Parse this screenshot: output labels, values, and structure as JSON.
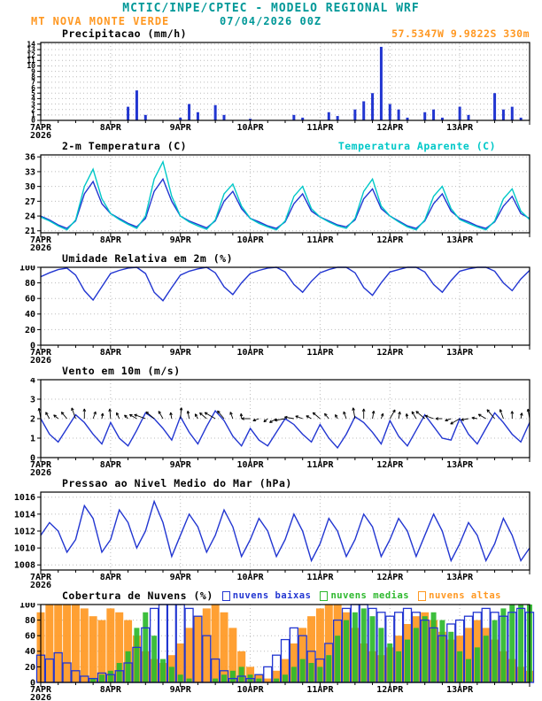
{
  "header": {
    "title": "MCTIC/INPE/CPTEC - MODELO REGIONAL WRF",
    "station": "MT NOVA MONTE VERDE",
    "run": "07/04/2026 00Z",
    "location": "57.5347W 9.9822S 330m"
  },
  "colors": {
    "teal": "#009898",
    "orange": "#ff9822",
    "blue": "#2236d1",
    "cyan": "#00c8c8",
    "green": "#2db82d",
    "grid": "#bbbbbb"
  },
  "x_axis": {
    "day_labels": [
      "7APR",
      "8APR",
      "9APR",
      "10APR",
      "11APR",
      "12APR",
      "13APR"
    ],
    "year_label": "2026",
    "hours_total": 168,
    "step_hours": 3
  },
  "chart_data": [
    {
      "id": "precip",
      "type": "bars",
      "title": "Precipitacao (mm/h)",
      "ylim": [
        0,
        14.3
      ],
      "yticks": [
        0,
        1,
        2,
        3,
        4,
        5,
        6,
        7,
        8,
        9,
        10,
        11,
        12,
        13,
        14
      ],
      "ylabel_size": 8,
      "series": [
        {
          "name": "precipitacao",
          "color": "#2236d1",
          "values": [
            0,
            0,
            0,
            0,
            0,
            0,
            0,
            0,
            0,
            0,
            2.5,
            5.5,
            1,
            0,
            0,
            0,
            0.5,
            3,
            1.5,
            0,
            2.8,
            1,
            0,
            0,
            0.3,
            0,
            0,
            0,
            0,
            1,
            0.5,
            0,
            0,
            1.5,
            0.8,
            0,
            2,
            3.5,
            5,
            13.5,
            3,
            2,
            0.5,
            0,
            1.5,
            2,
            0.5,
            0,
            2.5,
            1,
            0,
            0,
            5,
            2,
            2.5,
            0.5,
            0
          ]
        }
      ]
    },
    {
      "id": "temp",
      "type": "line",
      "title": "2-m Temperatura (C)",
      "right_label": "Temperatura Aparente (C)",
      "ylim": [
        20.6,
        36.4
      ],
      "yticks": [
        21,
        24,
        27,
        30,
        33,
        36
      ],
      "series": [
        {
          "name": "temperatura-2m",
          "color": "#2236d1",
          "values": [
            24,
            23.2,
            22.2,
            21.5,
            23,
            28.5,
            31,
            26.5,
            24.5,
            23.5,
            22.5,
            21.8,
            23.5,
            29,
            31.5,
            27,
            24,
            23,
            22.3,
            21.6,
            23,
            27,
            29,
            25.5,
            23.5,
            22.8,
            22,
            21.5,
            22.8,
            26.5,
            28.5,
            25,
            23.8,
            23,
            22.2,
            21.8,
            23.2,
            27.5,
            29.5,
            25.5,
            24,
            23,
            22,
            21.5,
            23,
            26.5,
            28.5,
            25,
            23.5,
            22.8,
            22,
            21.5,
            22.8,
            26,
            28,
            24.5,
            23.5
          ]
        },
        {
          "name": "temperatura-aparente",
          "color": "#00c8c8",
          "values": [
            23.8,
            23,
            22,
            21.2,
            23.2,
            30,
            33.5,
            27.5,
            24.5,
            23.3,
            22.3,
            21.5,
            24,
            31.5,
            35,
            28,
            24,
            22.8,
            22,
            21.3,
            23.2,
            28.5,
            30.5,
            26,
            23.5,
            22.5,
            21.8,
            21.2,
            23,
            28,
            30,
            25.5,
            23.8,
            22.8,
            22,
            21.5,
            23.5,
            29,
            31.5,
            26,
            24,
            22.8,
            21.8,
            21.2,
            23.2,
            28,
            30,
            25.5,
            23.3,
            22.5,
            21.8,
            21.2,
            23,
            27.5,
            29.5,
            25,
            23.3
          ]
        }
      ]
    },
    {
      "id": "rh",
      "type": "line",
      "title": "Umidade Relativa em 2m (%)",
      "ylim": [
        0,
        100
      ],
      "yticks": [
        0,
        20,
        40,
        60,
        80,
        100
      ],
      "series": [
        {
          "name": "umidade-relativa",
          "color": "#2236d1",
          "values": [
            88,
            93,
            97,
            99,
            90,
            70,
            58,
            75,
            92,
            96,
            99,
            100,
            92,
            68,
            57,
            74,
            90,
            95,
            98,
            100,
            93,
            75,
            65,
            80,
            92,
            96,
            99,
            100,
            94,
            78,
            68,
            82,
            93,
            97,
            100,
            100,
            93,
            74,
            64,
            80,
            94,
            97,
            100,
            100,
            94,
            78,
            68,
            83,
            95,
            98,
            100,
            100,
            95,
            80,
            70,
            85,
            96
          ]
        }
      ]
    },
    {
      "id": "wind",
      "type": "wind",
      "title": "Vento em 10m (m/s)",
      "ylim": [
        0,
        4
      ],
      "yticks": [
        0,
        1,
        2,
        3,
        4
      ],
      "arrow_baseline": 2,
      "arrow_dirs": [
        100,
        120,
        140,
        130,
        110,
        90,
        70,
        80,
        95,
        115,
        135,
        150,
        160,
        140,
        120,
        100,
        85,
        100,
        120,
        140,
        150,
        130,
        110,
        95,
        180,
        200,
        220,
        210,
        190,
        170,
        160,
        150,
        140,
        130,
        120,
        110,
        100,
        90,
        80,
        70,
        60,
        80,
        100,
        120,
        140,
        160,
        180,
        200,
        210,
        190,
        170,
        150,
        130,
        110,
        90,
        80,
        100
      ],
      "series": [
        {
          "name": "vento-10m",
          "color": "#2236d1",
          "values": [
            2,
            1.2,
            0.8,
            1.5,
            2.2,
            1.8,
            1.2,
            0.7,
            1.8,
            1,
            0.6,
            1.4,
            2.3,
            2,
            1.5,
            0.9,
            2.1,
            1.3,
            0.7,
            1.6,
            2.4,
            1.9,
            1.1,
            0.6,
            1.5,
            0.9,
            0.6,
            1.3,
            2,
            1.7,
            1.2,
            0.8,
            1.7,
            1,
            0.5,
            1.2,
            2.1,
            1.8,
            1.3,
            0.7,
            1.9,
            1.1,
            0.6,
            1.4,
            2.2,
            1.6,
            1,
            0.9,
            2,
            1.2,
            0.7,
            1.5,
            2.3,
            1.8,
            1.2,
            0.8,
            1.8
          ]
        }
      ]
    },
    {
      "id": "pres",
      "type": "line",
      "title": "Pressao ao Nivel Medio do Mar (hPa)",
      "ylim": [
        1007.4,
        1016.6
      ],
      "yticks": [
        1008,
        1010,
        1012,
        1014,
        1016
      ],
      "series": [
        {
          "name": "pressao-nivel-mar",
          "color": "#2236d1",
          "values": [
            1011.5,
            1013,
            1012,
            1009.5,
            1011,
            1015,
            1013.5,
            1009.5,
            1011,
            1014.5,
            1013,
            1010,
            1012,
            1015.5,
            1013,
            1009,
            1011.5,
            1014,
            1012.5,
            1009.5,
            1011.5,
            1014.5,
            1012.5,
            1009,
            1011,
            1013.5,
            1012,
            1009,
            1011,
            1014,
            1012,
            1008.5,
            1010.5,
            1013.5,
            1012,
            1009,
            1011,
            1014,
            1012.5,
            1009,
            1011,
            1013.5,
            1012,
            1009,
            1011.5,
            1014,
            1012,
            1008.5,
            1010.5,
            1013,
            1011.5,
            1008.5,
            1010.5,
            1013.5,
            1011.5,
            1008.5,
            1010
          ]
        }
      ]
    },
    {
      "id": "cloud",
      "type": "cloudbars",
      "title": "Cobertura de Nuvens (%)",
      "ylim": [
        0,
        100
      ],
      "yticks": [
        0,
        20,
        40,
        60,
        80,
        100
      ],
      "legend": [
        {
          "label": "nuvens baixas",
          "color": "#2236d1"
        },
        {
          "label": "nuvens medias",
          "color": "#2db82d"
        },
        {
          "label": "nuvens altas",
          "color": "#ff9822"
        }
      ],
      "series": [
        {
          "name": "nuvens-altas",
          "color": "#ff9822",
          "style": "solid",
          "width": 9,
          "values": [
            90,
            100,
            100,
            100,
            100,
            95,
            85,
            80,
            95,
            90,
            80,
            60,
            40,
            30,
            25,
            35,
            50,
            70,
            85,
            95,
            100,
            90,
            70,
            40,
            20,
            10,
            5,
            15,
            30,
            50,
            70,
            85,
            95,
            100,
            100,
            90,
            70,
            50,
            40,
            35,
            45,
            60,
            75,
            85,
            90,
            80,
            65,
            55,
            60,
            70,
            80,
            70,
            55,
            40,
            30,
            20,
            15
          ]
        },
        {
          "name": "nuvens-medias",
          "color": "#2db82d",
          "style": "solid",
          "width": 6,
          "values": [
            0,
            0,
            0,
            0,
            0,
            0,
            5,
            10,
            15,
            25,
            40,
            70,
            90,
            60,
            30,
            20,
            10,
            5,
            0,
            0,
            5,
            10,
            15,
            20,
            10,
            5,
            0,
            5,
            10,
            20,
            30,
            25,
            20,
            35,
            60,
            80,
            90,
            95,
            85,
            70,
            50,
            40,
            55,
            70,
            85,
            90,
            80,
            65,
            40,
            30,
            45,
            60,
            80,
            95,
            100,
            100,
            100
          ]
        },
        {
          "name": "nuvens-baixas",
          "color": "#2236d1",
          "style": "hollow",
          "width": 9,
          "values": [
            35,
            30,
            38,
            25,
            15,
            8,
            5,
            12,
            10,
            15,
            25,
            45,
            70,
            95,
            100,
            100,
            100,
            95,
            85,
            60,
            30,
            15,
            5,
            8,
            5,
            10,
            20,
            35,
            55,
            70,
            60,
            40,
            30,
            50,
            80,
            95,
            100,
            100,
            95,
            90,
            85,
            90,
            95,
            90,
            80,
            70,
            60,
            75,
            80,
            85,
            90,
            95,
            90,
            85,
            90,
            95,
            90
          ]
        }
      ]
    }
  ]
}
